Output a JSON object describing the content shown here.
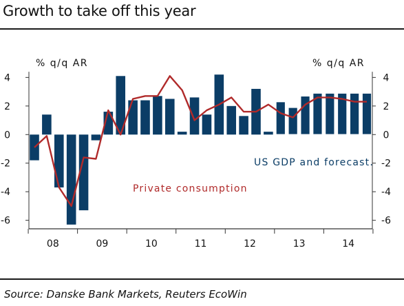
{
  "title": "Growth to take off this year",
  "source": "Source:  Danske Bank Markets, Reuters EcoWin",
  "colors": {
    "bars": "#0b3d66",
    "line": "#b02a2a",
    "text": "#111111",
    "axis": "#333333"
  },
  "chart_data": {
    "type": "bar",
    "title": "Growth to take off this year",
    "ylabel_left": "% q/q AR",
    "ylabel_right": "% q/q AR",
    "ylim": [
      -6.5,
      4.5
    ],
    "yticks": [
      4,
      2,
      0,
      -2,
      -4,
      -6
    ],
    "ytick_labels": [
      "4",
      "2",
      "0",
      "-2",
      "-4",
      "-6"
    ],
    "x_tick_labels": [
      "08",
      "09",
      "10",
      "11",
      "12",
      "13",
      "14"
    ],
    "legend": "inside, middle-right",
    "series": [
      {
        "name": "US GDP and forecast.",
        "type": "bar",
        "values": [
          -1.8,
          1.4,
          -3.7,
          -6.3,
          -5.3,
          -0.4,
          1.6,
          4.1,
          2.4,
          2.4,
          2.7,
          2.5,
          0.2,
          2.6,
          1.4,
          4.2,
          2.0,
          1.3,
          3.2,
          0.2,
          2.3,
          1.9,
          2.7,
          2.9,
          2.9,
          2.9,
          2.9,
          2.9
        ]
      },
      {
        "name": "Private consumption",
        "type": "line",
        "values": [
          -0.9,
          -0.1,
          -3.7,
          -5.0,
          -1.6,
          -1.7,
          1.7,
          0.0,
          2.5,
          2.7,
          2.7,
          4.1,
          3.1,
          1.0,
          1.7,
          2.1,
          2.6,
          1.6,
          1.6,
          2.1,
          1.5,
          1.2,
          2.1,
          2.6,
          2.6,
          2.5,
          2.3,
          2.3
        ]
      }
    ]
  }
}
